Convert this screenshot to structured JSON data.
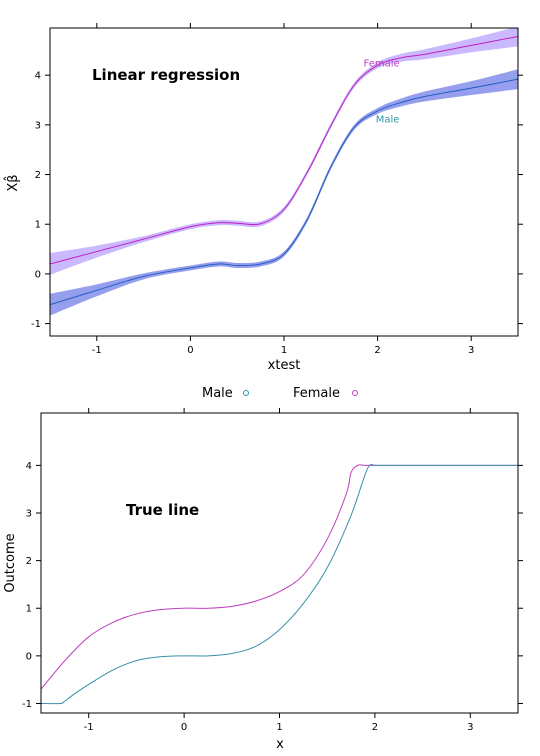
{
  "chart_data": [
    {
      "type": "line",
      "title": "Linear regression",
      "xlabel": "xtest",
      "ylabel": "Xβ̂",
      "xlim": [
        -1.5,
        3.5
      ],
      "ylim": [
        -1.25,
        4.95
      ],
      "xticks": [
        -1,
        0,
        1,
        2,
        3
      ],
      "yticks": [
        -1,
        0,
        1,
        2,
        3,
        4
      ],
      "xtick_labels": [
        "-1",
        "0",
        "1",
        "2",
        "3"
      ],
      "ytick_labels": [
        "-1",
        "0",
        "1",
        "2",
        "3",
        "4"
      ],
      "series": [
        {
          "name": "Female",
          "color": "#c020c0",
          "band_color": "#a080ff",
          "x": [
            -1.5,
            -1.0,
            -0.5,
            0.0,
            0.3,
            0.5,
            0.75,
            1.0,
            1.25,
            1.5,
            1.75,
            2.0,
            2.25,
            2.5,
            3.0,
            3.5
          ],
          "y": [
            0.2,
            0.45,
            0.7,
            0.95,
            1.03,
            1.02,
            1.01,
            1.3,
            2.05,
            2.98,
            3.8,
            4.2,
            4.35,
            4.42,
            4.6,
            4.78
          ],
          "band": [
            0.22,
            0.12,
            0.06,
            0.05,
            0.05,
            0.05,
            0.05,
            0.05,
            0.05,
            0.05,
            0.05,
            0.06,
            0.08,
            0.1,
            0.14,
            0.2
          ]
        },
        {
          "name": "Male",
          "color": "#2060c0",
          "band_color": "#4050e0",
          "x": [
            -1.5,
            -1.0,
            -0.5,
            0.0,
            0.3,
            0.5,
            0.75,
            1.0,
            1.25,
            1.5,
            1.75,
            2.0,
            2.25,
            2.5,
            3.0,
            3.5
          ],
          "y": [
            -0.62,
            -0.33,
            -0.05,
            0.12,
            0.2,
            0.17,
            0.2,
            0.4,
            1.1,
            2.15,
            2.95,
            3.28,
            3.45,
            3.57,
            3.74,
            3.92
          ],
          "band": [
            0.22,
            0.12,
            0.06,
            0.05,
            0.05,
            0.05,
            0.05,
            0.05,
            0.05,
            0.05,
            0.05,
            0.06,
            0.08,
            0.1,
            0.14,
            0.2
          ]
        }
      ],
      "series_labels": [
        {
          "text": "Female",
          "x": 1.85,
          "y": 4.18
        },
        {
          "text": "Male",
          "x": 1.98,
          "y": 3.05
        }
      ],
      "legend": {
        "position": "bottom",
        "items": [
          "Male",
          "Female"
        ]
      }
    },
    {
      "type": "line",
      "title": "True line",
      "xlabel": "x",
      "ylabel": "Outcome",
      "xlim": [
        -1.5,
        3.5
      ],
      "ylim": [
        -1.2,
        5.1
      ],
      "xticks": [
        -1,
        0,
        1,
        2,
        3
      ],
      "yticks": [
        -1,
        0,
        1,
        2,
        3,
        4
      ],
      "xtick_labels": [
        "-1",
        "0",
        "1",
        "2",
        "3"
      ],
      "ytick_labels": [
        "-1",
        "0",
        "1",
        "2",
        "3",
        "4"
      ],
      "series": [
        {
          "name": "Female",
          "color": "#c040c0",
          "x": [
            -1.5,
            -1.25,
            -1.0,
            -0.75,
            -0.5,
            -0.25,
            0.0,
            0.25,
            0.5,
            0.75,
            1.0,
            1.25,
            1.5,
            1.7,
            1.75,
            1.82,
            1.9,
            2.0,
            2.5,
            3.0,
            3.5
          ],
          "y": [
            -0.7,
            -0.1,
            0.4,
            0.7,
            0.88,
            0.97,
            1.0,
            1.0,
            1.04,
            1.15,
            1.35,
            1.7,
            2.45,
            3.4,
            3.85,
            4.0,
            4.0,
            4.0,
            4.0,
            4.0,
            4.0
          ]
        },
        {
          "name": "Male",
          "color": "#3a90a8",
          "x": [
            -1.5,
            -1.3,
            -1.25,
            -1.15,
            -1.0,
            -0.75,
            -0.5,
            -0.25,
            0.0,
            0.25,
            0.5,
            0.75,
            1.0,
            1.25,
            1.5,
            1.75,
            1.92,
            2.0,
            2.06,
            2.5,
            3.0,
            3.5
          ],
          "y": [
            -1.0,
            -1.0,
            -0.95,
            -0.8,
            -0.6,
            -0.3,
            -0.1,
            -0.02,
            0.0,
            0.0,
            0.05,
            0.2,
            0.55,
            1.1,
            1.85,
            2.95,
            3.92,
            4.0,
            4.0,
            4.0,
            4.0,
            4.0
          ]
        }
      ]
    }
  ]
}
